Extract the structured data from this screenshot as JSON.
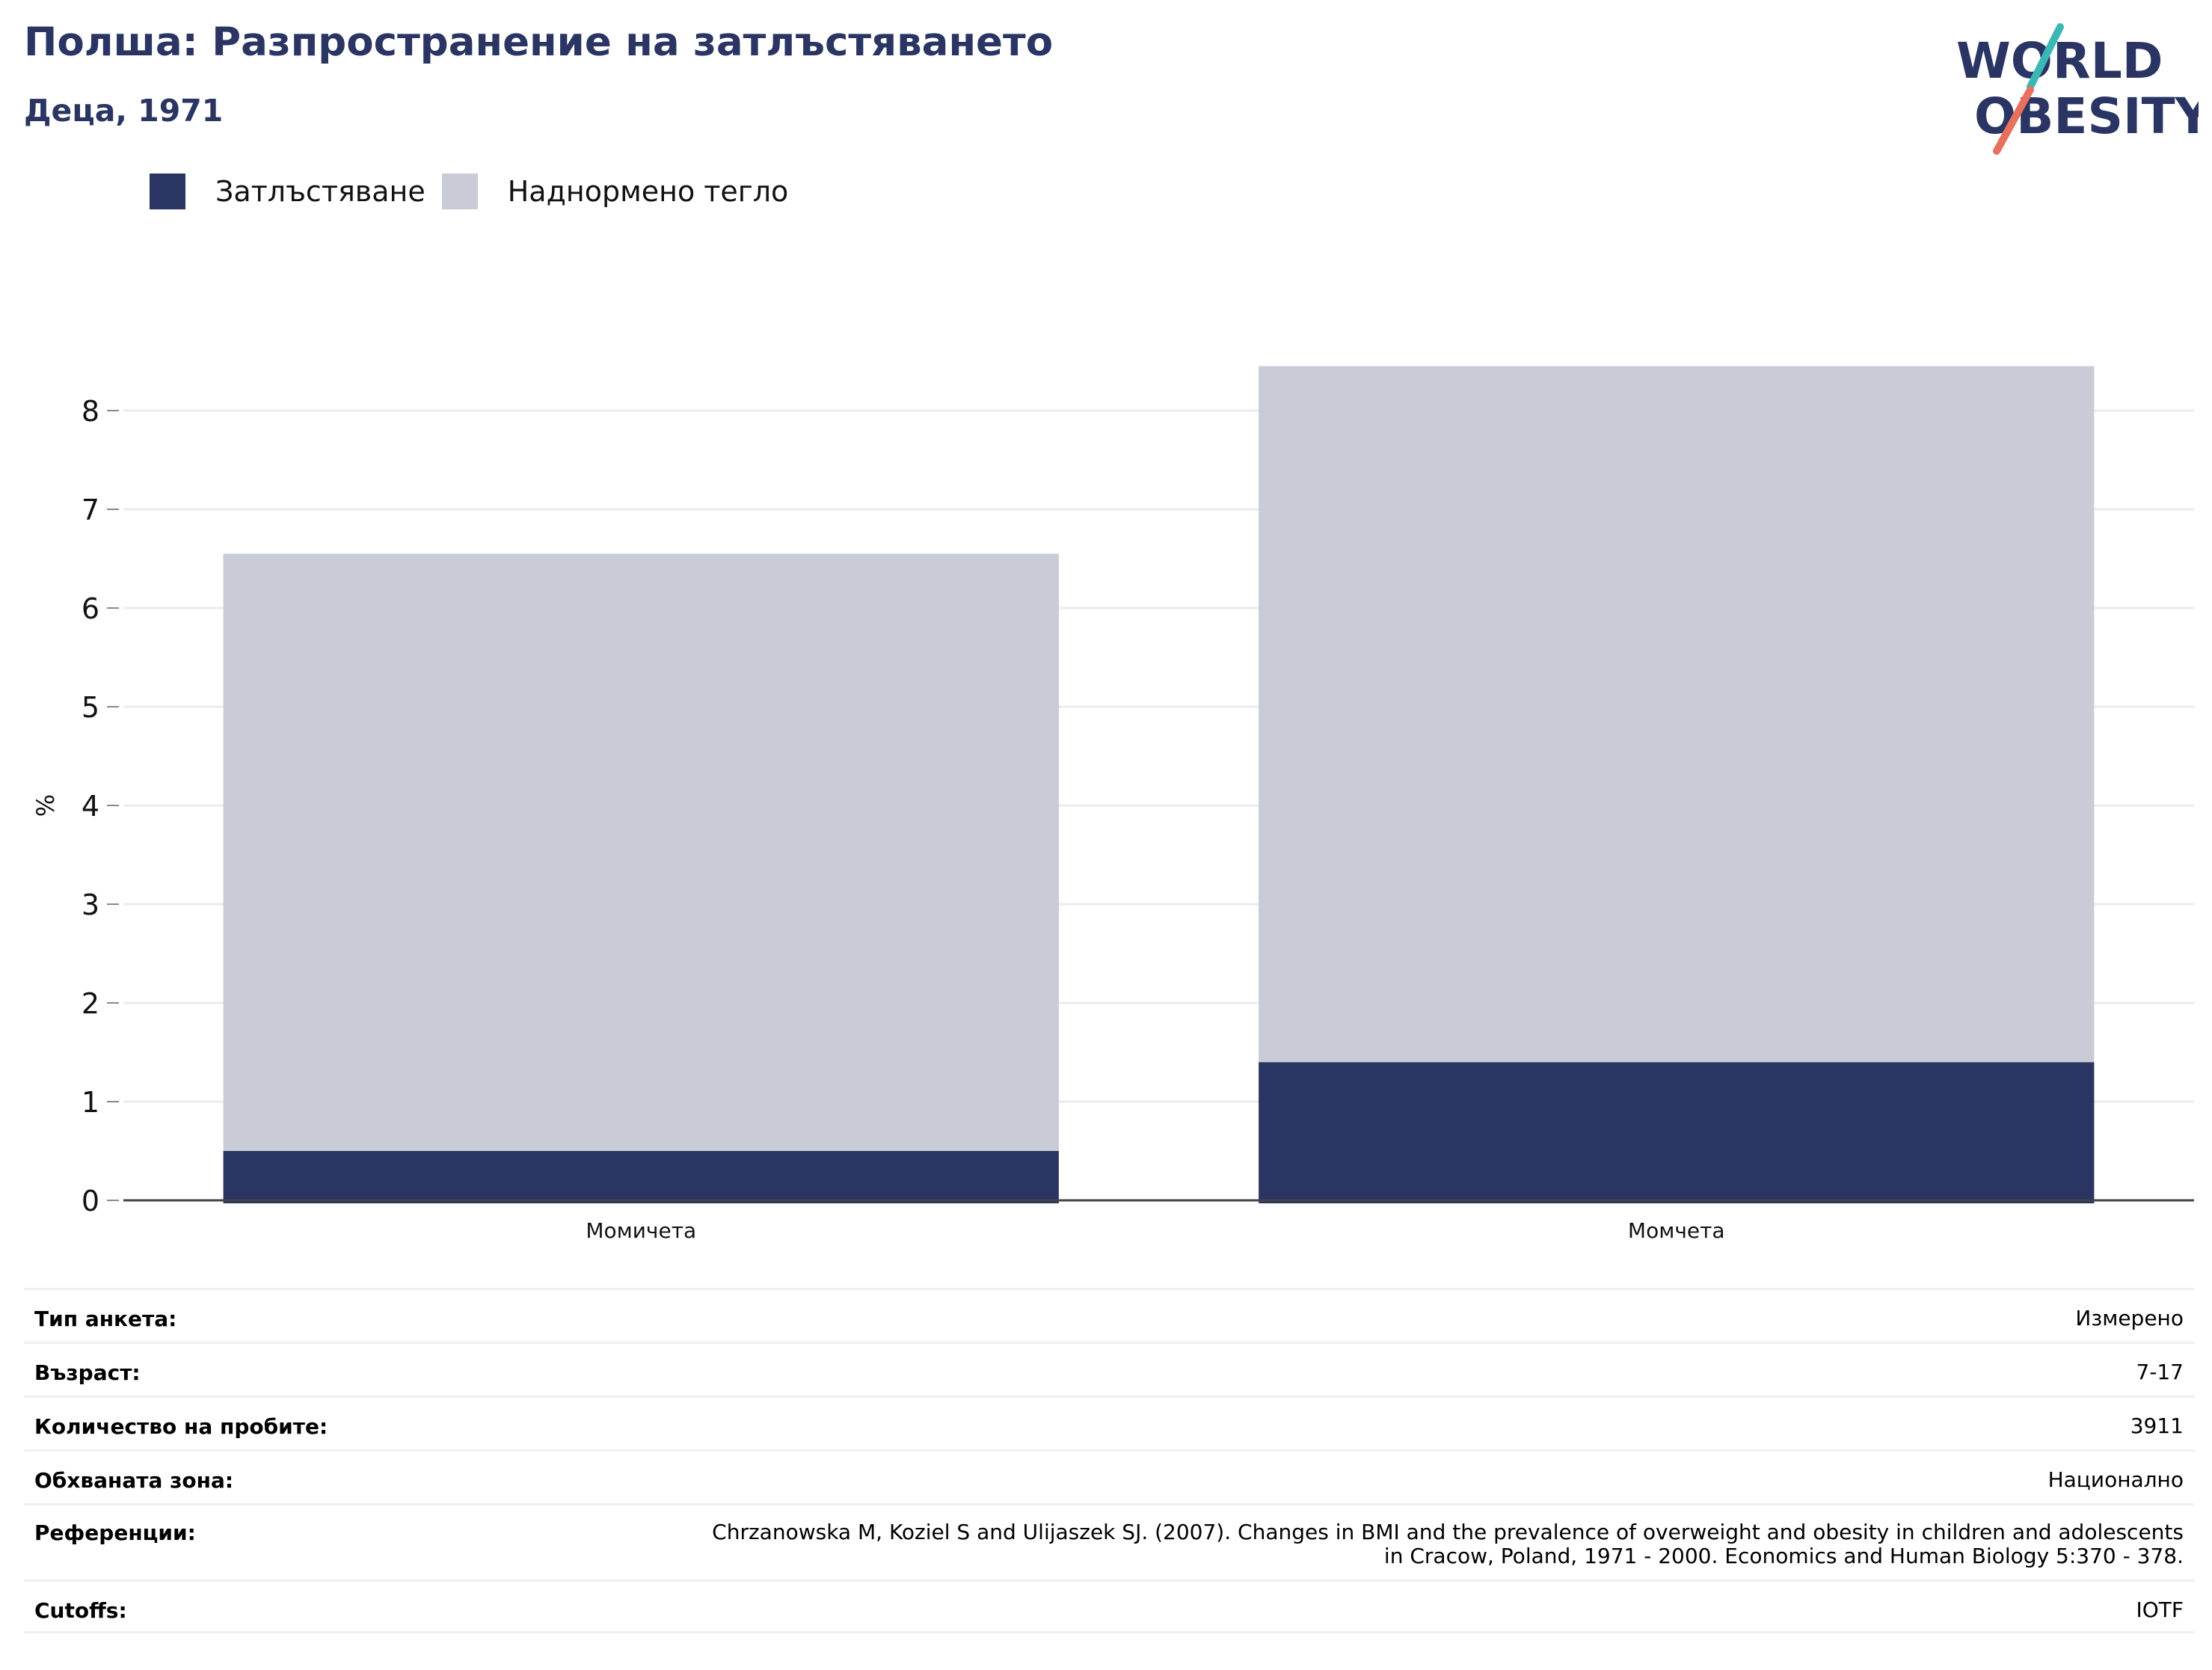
{
  "header": {
    "title": "Полша: Разпространение на затлъстяването",
    "subtitle": "Деца, 1971"
  },
  "logo": {
    "line1": "WORLD",
    "line2": "OBESITY",
    "colors": {
      "text": "#2a3564",
      "teal": "#3bb8b4",
      "coral": "#e8705f"
    }
  },
  "legend": [
    {
      "label": "Затлъстяване",
      "color": "#2a3564"
    },
    {
      "label": "Наднормено тегло",
      "color": "#c9cbd7"
    }
  ],
  "chart_data": {
    "type": "bar",
    "stacked": true,
    "categories": [
      "Момичета",
      "Момчета"
    ],
    "series": [
      {
        "name": "Затлъстяване",
        "values": [
          0.5,
          1.4
        ],
        "color": "#2a3564"
      },
      {
        "name": "Наднормено тегло",
        "values": [
          6.05,
          7.05
        ],
        "color": "#c9cbd7"
      }
    ],
    "ylabel": "%",
    "yticks": [
      0,
      1,
      2,
      3,
      4,
      5,
      6,
      7,
      8
    ],
    "ylim": [
      0,
      8.5
    ],
    "grid": true
  },
  "meta": [
    {
      "label": "Тип анкета:",
      "value": [
        "Измерено"
      ]
    },
    {
      "label": "Възраст:",
      "value": [
        "7-17"
      ]
    },
    {
      "label": "Количество на пробите:",
      "value": [
        "3911"
      ]
    },
    {
      "label": "Обхваната зона:",
      "value": [
        "Национално"
      ]
    },
    {
      "label": "Референции:",
      "value": [
        "Chrzanowska M, Koziel S and Ulijaszek SJ. (2007). Changes in BMI and the prevalence of overweight and obesity in children and adolescents",
        "in Cracow, Poland, 1971 - 2000. Economics and Human Biology 5:370 - 378."
      ]
    },
    {
      "label": "Cutoffs:",
      "value": [
        "IOTF"
      ]
    }
  ]
}
